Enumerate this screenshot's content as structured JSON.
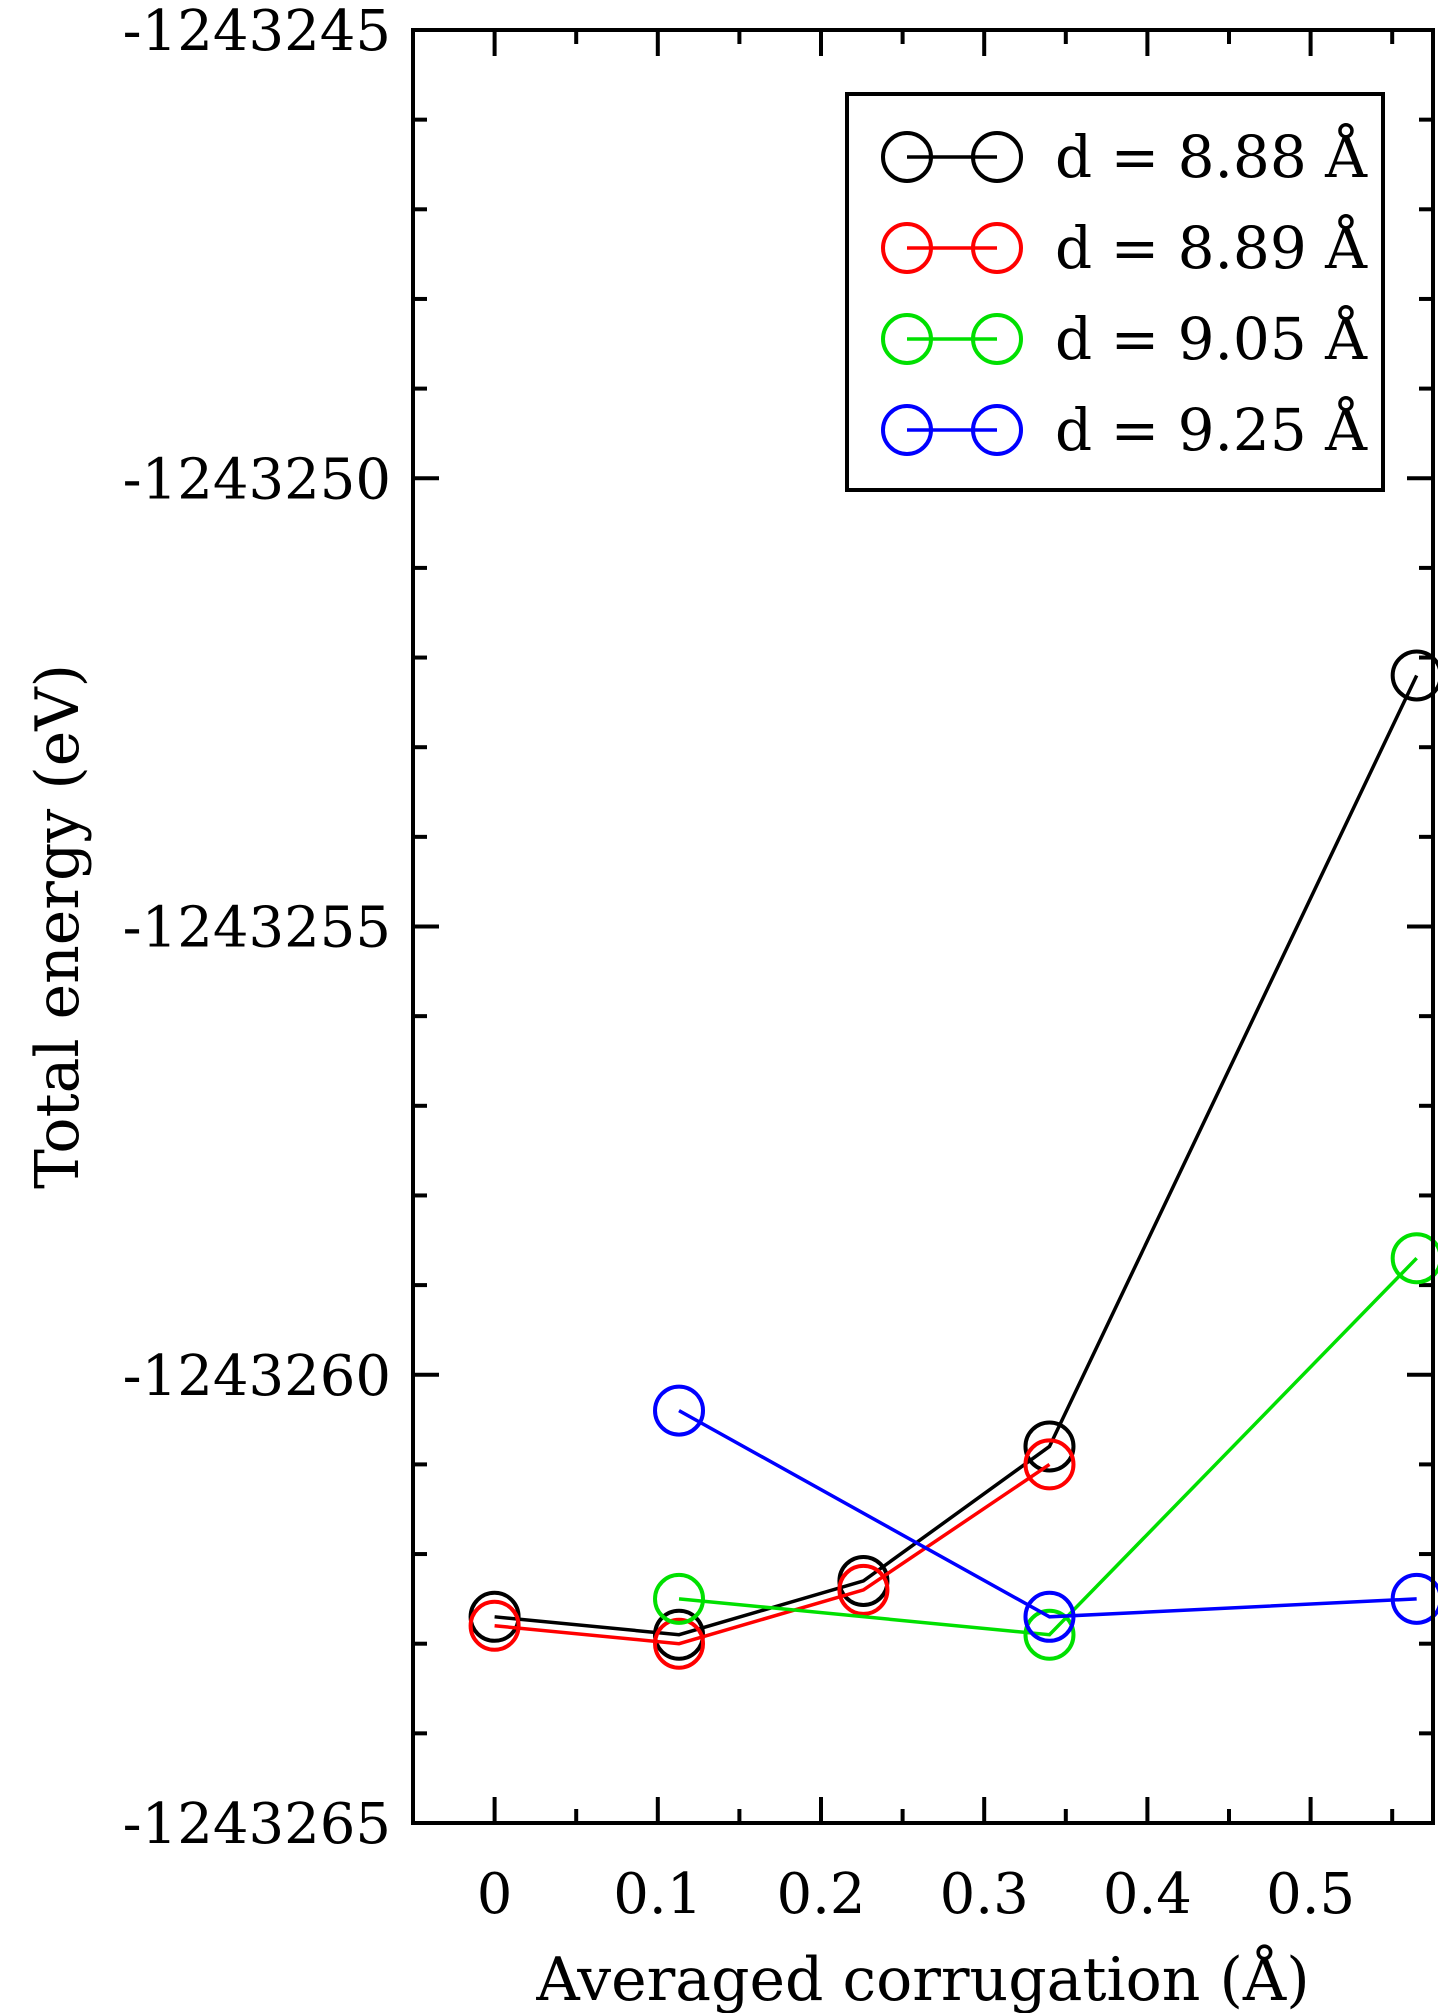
{
  "chart_data": {
    "type": "line",
    "xlabel": "Averaged corrugation (Å)",
    "ylabel": "Total energy (eV)",
    "xlim": [
      -0.05,
      0.575
    ],
    "ylim": [
      -1243265,
      -1243245
    ],
    "x_ticks": [
      0,
      0.1,
      0.2,
      0.3,
      0.4,
      0.5
    ],
    "x_tick_labels": [
      "0",
      "0.1",
      "0.2",
      "0.3",
      "0.4",
      "0.5"
    ],
    "y_ticks": [
      -1243265,
      -1243260,
      -1243255,
      -1243250,
      -1243245
    ],
    "y_tick_labels": [
      "-1243265",
      "-1243260",
      "-1243255",
      "-1243250",
      "-1243245"
    ],
    "legend_position": "top-right",
    "grid": false,
    "series": [
      {
        "name": "d = 8.88 Å",
        "color": "#000000",
        "points": [
          [
            0,
            -1243262.7
          ],
          [
            0.113,
            -1243262.9
          ],
          [
            0.226,
            -1243262.3
          ],
          [
            0.34,
            -1243260.8
          ],
          [
            0.565,
            -1243252.2
          ]
        ]
      },
      {
        "name": "d = 8.89 Å",
        "color": "#ff0000",
        "points": [
          [
            0,
            -1243262.8
          ],
          [
            0.113,
            -1243263.0
          ],
          [
            0.226,
            -1243262.4
          ],
          [
            0.34,
            -1243261.0
          ]
        ]
      },
      {
        "name": "d = 9.05 Å",
        "color": "#00e000",
        "points": [
          [
            0.113,
            -1243262.5
          ],
          [
            0.34,
            -1243262.9
          ],
          [
            0.565,
            -1243258.7
          ]
        ]
      },
      {
        "name": "d = 9.25 Å",
        "color": "#0000ff",
        "points": [
          [
            0.113,
            -1243260.4
          ],
          [
            0.34,
            -1243262.7
          ],
          [
            0.565,
            -1243262.5
          ]
        ]
      }
    ]
  }
}
